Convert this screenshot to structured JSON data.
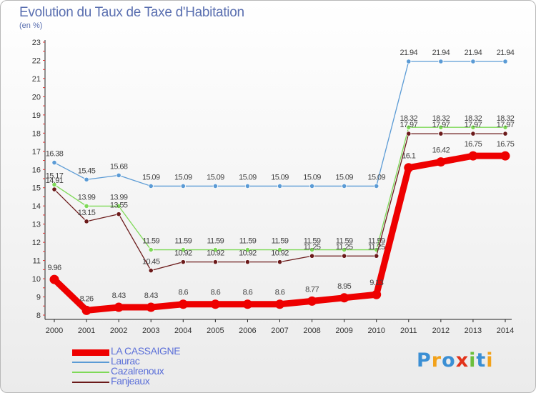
{
  "header": {
    "title": "Evolution du Taux de Taxe d'Habitation",
    "subtitle": "(en %)"
  },
  "logo": {
    "letters": [
      {
        "ch": "P",
        "color": "#3b8fd4"
      },
      {
        "ch": "r",
        "color": "#f2a21b"
      },
      {
        "ch": "o",
        "color": "#3b8fd4"
      },
      {
        "ch": "x",
        "color": "#e2331b"
      },
      {
        "ch": "i",
        "color": "#6cbf3c"
      },
      {
        "ch": "t",
        "color": "#3b8fd4"
      },
      {
        "ch": "i",
        "color": "#f2a21b"
      }
    ]
  },
  "chart_data": {
    "type": "line",
    "x": [
      "2000",
      "2001",
      "2002",
      "2003",
      "2004",
      "2005",
      "2006",
      "2007",
      "2008",
      "2009",
      "2010",
      "2011",
      "2012",
      "2013",
      "2014"
    ],
    "ylim": [
      8,
      23
    ],
    "yticks": [
      8,
      9,
      10,
      11,
      12,
      13,
      14,
      15,
      16,
      17,
      18,
      19,
      20,
      21,
      22,
      23
    ],
    "grid": false,
    "legend_position": "bottom-left",
    "series": [
      {
        "name": "Laurac",
        "color": "#5b9bd5",
        "values": [
          16.38,
          15.45,
          15.68,
          15.09,
          15.09,
          15.09,
          15.09,
          15.09,
          15.09,
          15.09,
          15.09,
          21.94,
          21.94,
          21.94,
          21.94
        ],
        "labels": [
          "16.38",
          "15.45",
          "15.68",
          "15.09",
          "15.09",
          "15.09",
          "15.09",
          "15.09",
          "15.09",
          "15.09",
          "15.09",
          "21.94",
          "21.94",
          "21.94",
          "21.94"
        ]
      },
      {
        "name": "Cazalrenoux",
        "color": "#7ed957",
        "values": [
          15.17,
          13.99,
          13.99,
          11.59,
          11.59,
          11.59,
          11.59,
          11.59,
          11.59,
          11.59,
          11.59,
          18.32,
          18.32,
          18.32,
          18.32
        ],
        "labels": [
          "15.17",
          "13.99",
          "13.99",
          "11.59",
          "11.59",
          "11.59",
          "11.59",
          "11.59",
          "11.59",
          "11.59",
          "11.59",
          "18.32",
          "18.32",
          "18.32",
          "18.32"
        ]
      },
      {
        "name": "Fanjeaux",
        "color": "#6b1a1a",
        "values": [
          14.91,
          13.15,
          13.55,
          10.45,
          10.92,
          10.92,
          10.92,
          10.92,
          11.25,
          11.25,
          11.25,
          17.97,
          17.97,
          17.97,
          17.97
        ],
        "labels": [
          "14.91",
          "13.15",
          "13.55",
          "10.45",
          "10.92",
          "10.92",
          "10.92",
          "10.92",
          "11.25",
          "11.25",
          "11.25",
          "17.97",
          "17.97",
          "17.97",
          "17.97"
        ]
      },
      {
        "name": "LA CASSAIGNE",
        "color": "#ee0000",
        "values": [
          9.96,
          8.26,
          8.43,
          8.43,
          8.6,
          8.6,
          8.6,
          8.6,
          8.77,
          8.95,
          9.13,
          16.1,
          16.42,
          16.75,
          16.75
        ],
        "labels": [
          "9.96",
          "8.26",
          "8.43",
          "8.43",
          "8.6",
          "8.6",
          "8.6",
          "8.6",
          "8.77",
          "8.95",
          "9.13",
          "16.1",
          "16.42",
          "16.75",
          "16.75"
        ]
      }
    ],
    "legend_order": [
      "LA CASSAIGNE",
      "Laurac",
      "Cazalrenoux",
      "Fanjeaux"
    ]
  }
}
